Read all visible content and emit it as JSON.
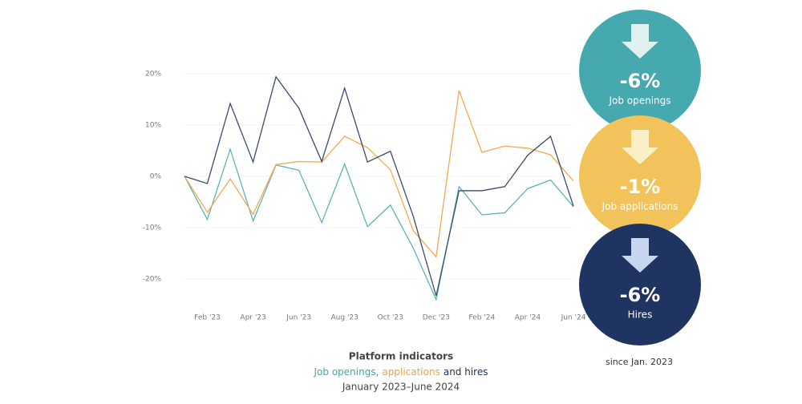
{
  "chart_data": {
    "type": "line",
    "title": "Platform indicators",
    "subtitle": [
      {
        "text": "Job openings,",
        "color": "#3fa7ad"
      },
      {
        "text": "applications",
        "color": "#f0a23c"
      },
      {
        "text": "and hires",
        "color": "#1f2d4d"
      }
    ],
    "period": "January 2023–June 2024",
    "note": "since Jan. 2023",
    "categories": [
      null,
      "Feb '23",
      null,
      "Apr '23",
      null,
      "Jun '23",
      null,
      "Aug '23",
      null,
      "Oct '23",
      null,
      "Dec '23",
      null,
      "Feb '24",
      null,
      "Apr '24",
      null,
      "Jun '24"
    ],
    "ylim": [
      -27,
      27
    ],
    "yticks": [
      {
        "value": -20,
        "label": "-20%"
      },
      {
        "value": -10,
        "label": "-10%"
      },
      {
        "value": 0,
        "label": "0%"
      },
      {
        "value": 10,
        "label": "10%"
      },
      {
        "value": 20,
        "label": "20%"
      }
    ],
    "grid": true,
    "series": [
      {
        "name": "Job openings",
        "color": "#5bb4b8",
        "badge_color": "#45a9af",
        "change": "-6%",
        "values": [
          0,
          -8.4,
          5.3,
          -8.7,
          2.2,
          1.2,
          -9,
          2.4,
          -9.8,
          -5.6,
          -14,
          -24,
          -2,
          -7.5,
          -7.1,
          -2.4,
          -0.7,
          -5.9
        ]
      },
      {
        "name": "Job applications",
        "color": "#f5a94e",
        "badge_color": "#f2c35a",
        "change": "-1%",
        "values": [
          0,
          -7,
          -0.5,
          -7.4,
          2.3,
          2.9,
          2.8,
          7.8,
          5.6,
          1.3,
          -10.6,
          -15.7,
          16.7,
          4.7,
          5.9,
          5.5,
          4.2,
          -0.9
        ]
      },
      {
        "name": "Hires",
        "color": "#3a4a6e",
        "badge_color": "#1f3461",
        "change": "-6%",
        "values": [
          0,
          -1.4,
          14.2,
          2.8,
          19.4,
          13.3,
          2.9,
          17.2,
          2.8,
          4.9,
          -7.8,
          -23.3,
          -2.8,
          -2.8,
          -2,
          4.1,
          7.8,
          -5.8
        ]
      }
    ]
  }
}
